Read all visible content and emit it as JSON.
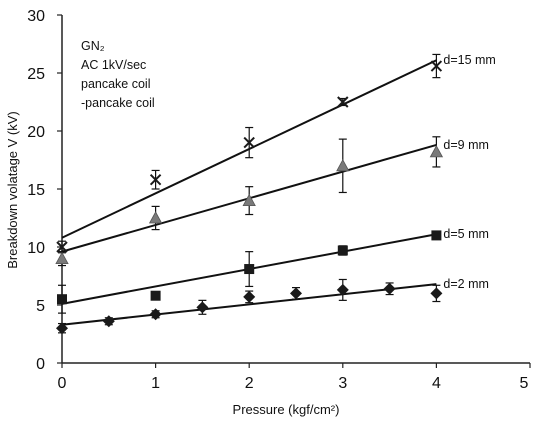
{
  "chart_data": {
    "type": "scatter",
    "xlabel": "Pressure (kgf/cm²)",
    "ylabel": "Breakdown volatage V (kV)",
    "xlim": [
      0,
      5
    ],
    "ylim": [
      0,
      30
    ],
    "xticks": [
      "0",
      "1",
      "2",
      "3",
      "4",
      "5"
    ],
    "yticks": [
      "0",
      "5",
      "10",
      "15",
      "20",
      "25",
      "30"
    ],
    "grid": false,
    "annotation_lines": [
      "GN₂",
      "AC 1kV/sec",
      "pancake coil",
      "-pancake coil"
    ],
    "series": [
      {
        "name": "d=15 mm",
        "marker": "x",
        "color": "#1a1a1a",
        "x": [
          0,
          1,
          2,
          3,
          4
        ],
        "y": [
          10.0,
          15.8,
          19.0,
          22.5,
          25.6
        ],
        "err": [
          0.5,
          0.8,
          1.3,
          0.3,
          1.0
        ],
        "fit": [
          [
            0,
            10.8
          ],
          [
            4,
            26.1
          ]
        ]
      },
      {
        "name": "d=9 mm",
        "marker": "triangle",
        "color": "#7a7a7a",
        "x": [
          0,
          1,
          2,
          3,
          4
        ],
        "y": [
          9.0,
          12.5,
          14.0,
          17.0,
          18.2
        ],
        "err": [
          0.6,
          1.0,
          1.2,
          2.3,
          1.3
        ],
        "fit": [
          [
            0,
            9.6
          ],
          [
            4,
            18.8
          ]
        ]
      },
      {
        "name": "d=5 mm",
        "marker": "square",
        "color": "#1a1a1a",
        "x": [
          0,
          1,
          2,
          3,
          4
        ],
        "y": [
          5.5,
          5.8,
          8.1,
          9.7,
          11.0
        ],
        "err": [
          1.2,
          0.3,
          1.5,
          0.4,
          0.3
        ],
        "fit": [
          [
            0,
            5.1
          ],
          [
            4,
            11.1
          ]
        ]
      },
      {
        "name": "d=2 mm",
        "marker": "diamond",
        "color": "#1a1a1a",
        "x": [
          0,
          0.5,
          1,
          1.5,
          2,
          2.5,
          3,
          3.5,
          4
        ],
        "y": [
          3.0,
          3.6,
          4.2,
          4.8,
          5.7,
          6.0,
          6.3,
          6.4,
          6.0
        ],
        "err": [
          0.4,
          0.3,
          0.3,
          0.6,
          0.5,
          0.5,
          0.9,
          0.5,
          0.7
        ],
        "fit": [
          [
            0,
            3.3
          ],
          [
            4,
            6.8
          ]
        ]
      }
    ]
  }
}
